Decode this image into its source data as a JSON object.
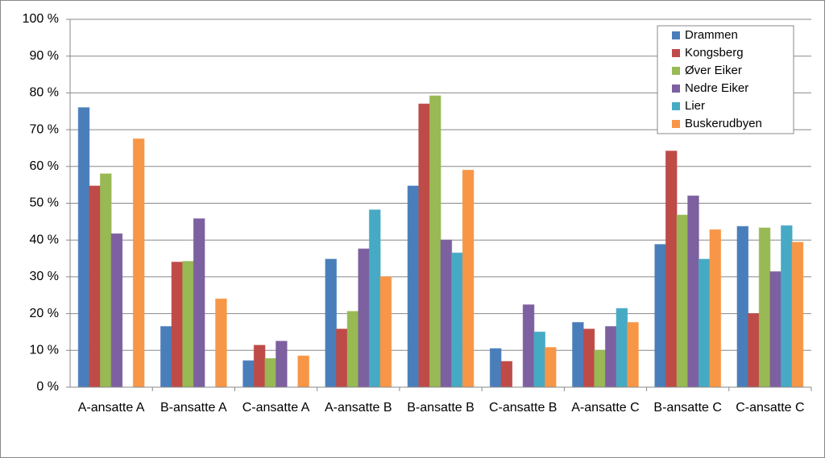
{
  "chart_data": {
    "type": "bar",
    "categories": [
      "A-ansatte  A",
      "B-ansatte  A",
      "C-ansatte  A",
      "A-ansatte  B",
      "B-ansatte  B",
      "C-ansatte  B",
      "A-ansatte  C",
      "B-ansatte  C",
      "C-ansatte  C"
    ],
    "series": [
      {
        "name": "Drammen",
        "color": "#4a7ebb",
        "values": [
          76,
          16.5,
          7.2,
          34.8,
          54.7,
          10.5,
          17.6,
          38.8,
          43.7
        ]
      },
      {
        "name": "Kongsberg",
        "color": "#be4b48",
        "values": [
          54.7,
          34,
          11.4,
          15.8,
          77,
          7,
          15.8,
          64.2,
          20
        ]
      },
      {
        "name": "Øver Eiker",
        "color": "#98b954",
        "values": [
          58,
          34.2,
          7.8,
          20.6,
          79.2,
          null,
          10,
          46.8,
          43.3
        ]
      },
      {
        "name": "Nedre Eiker",
        "color": "#7d60a0",
        "values": [
          41.7,
          45.8,
          12.5,
          37.6,
          40,
          22.4,
          16.5,
          52,
          31.4
        ]
      },
      {
        "name": "Lier",
        "color": "#46aac5",
        "values": [
          null,
          null,
          null,
          48.2,
          36.5,
          15,
          21.4,
          34.8,
          43.9
        ]
      },
      {
        "name": "Buskerudbyen",
        "color": "#f79646",
        "values": [
          67.5,
          24,
          8.5,
          30,
          59,
          10.8,
          17.6,
          42.8,
          39.4
        ]
      }
    ],
    "ylim": [
      0,
      100
    ],
    "yticks": [
      {
        "value": 0,
        "label": "0 %"
      },
      {
        "value": 10,
        "label": "10 %"
      },
      {
        "value": 20,
        "label": "20 %"
      },
      {
        "value": 30,
        "label": "30 %"
      },
      {
        "value": 40,
        "label": "40 %"
      },
      {
        "value": 50,
        "label": "50 %"
      },
      {
        "value": 60,
        "label": "60 %"
      },
      {
        "value": 70,
        "label": "70 %"
      },
      {
        "value": 80,
        "label": "80 %"
      },
      {
        "value": 90,
        "label": "90 %"
      },
      {
        "value": 100,
        "label": "100 %"
      }
    ],
    "grid": true,
    "legend": "top-right"
  }
}
